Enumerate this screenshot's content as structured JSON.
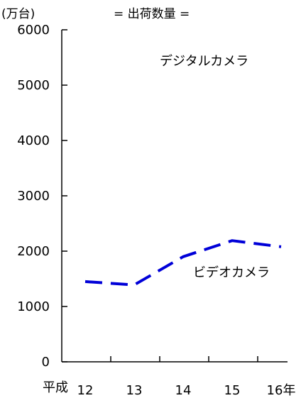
{
  "chart_data": {
    "type": "line",
    "title": "= 出荷数量 =",
    "unit_label": "(万台)",
    "x_prefix": "平成",
    "categories": [
      "12",
      "13",
      "14",
      "15",
      "16年"
    ],
    "x": [
      12,
      13,
      14,
      15,
      16
    ],
    "ylim": [
      0,
      6000
    ],
    "y_ticks": [
      "0",
      "1000",
      "2000",
      "3000",
      "4000",
      "5000",
      "6000"
    ],
    "grid": false,
    "series": [
      {
        "name": "ビデオカメラ",
        "values": [
          1450,
          1390,
          1900,
          2190,
          2080
        ],
        "color": "#0000d8",
        "style": "dashed"
      }
    ],
    "annotations": [
      {
        "text": "デジタルカメラ"
      },
      {
        "text": "ビデオカメラ"
      }
    ]
  }
}
